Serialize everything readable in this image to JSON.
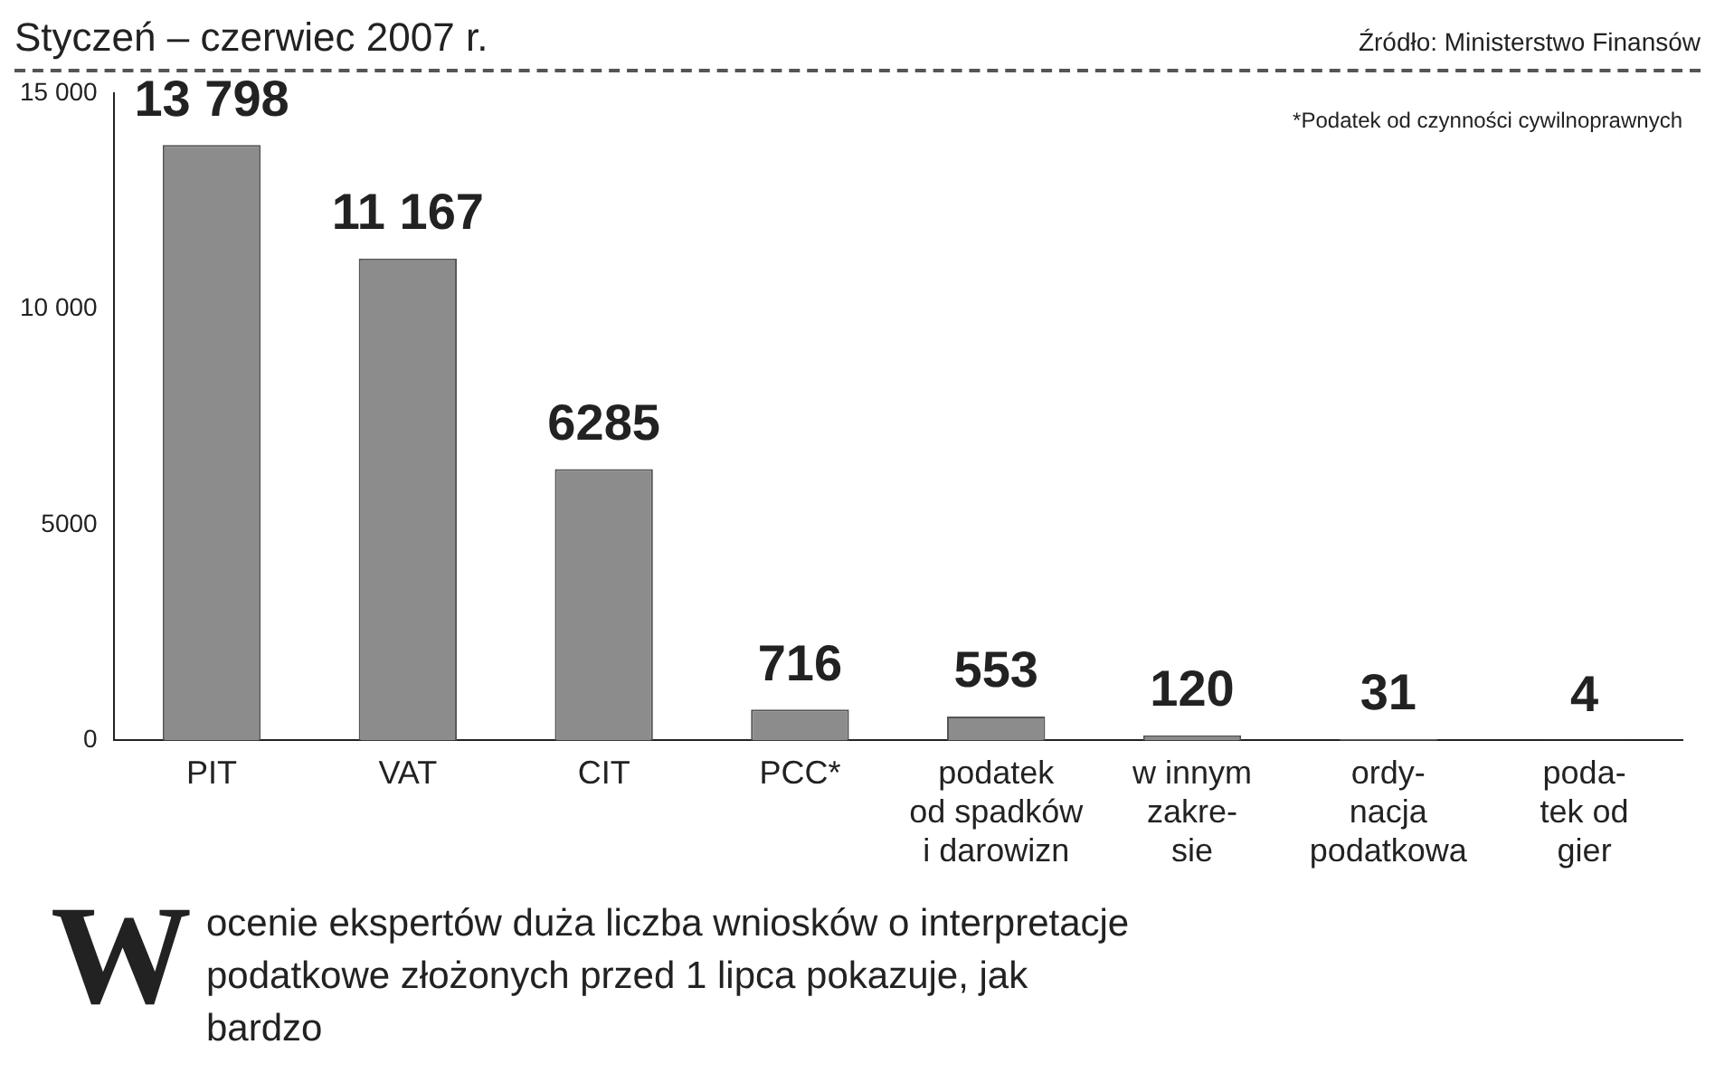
{
  "chart_data": {
    "type": "bar",
    "title": "Styczeń – czerwiec 2007 r.",
    "categories": [
      "PIT",
      "VAT",
      "CIT",
      "PCC*",
      "podatek\nod spadków\ni darowizn",
      "w innym\nzakre-\nsie",
      "ordy-\nnacja\npodatkowa",
      "poda-\ntek od\ngier"
    ],
    "values": [
      13798,
      11167,
      6285,
      716,
      553,
      120,
      31,
      4
    ],
    "value_labels": [
      "13 798",
      "11 167",
      "6285",
      "716",
      "553",
      "120",
      "31",
      "4"
    ],
    "color": "#8c8c8c",
    "ylim": [
      0,
      15000
    ],
    "yticks": [
      {
        "value": 0,
        "label": "0"
      },
      {
        "value": 5000,
        "label": "5000"
      },
      {
        "value": 10000,
        "label": "10 000"
      },
      {
        "value": 15000,
        "label": "15 000"
      }
    ],
    "grid": false,
    "legend": false,
    "annotations": [
      "Źródło: Ministerstwo Finansów",
      "*Podatek od czynności cywilnoprawnych",
      "W ocenie ekspertów duża liczba wniosków o interpretacje podatkowe złożonych przed 1 lipca pokazuje, jak bardzo"
    ]
  }
}
